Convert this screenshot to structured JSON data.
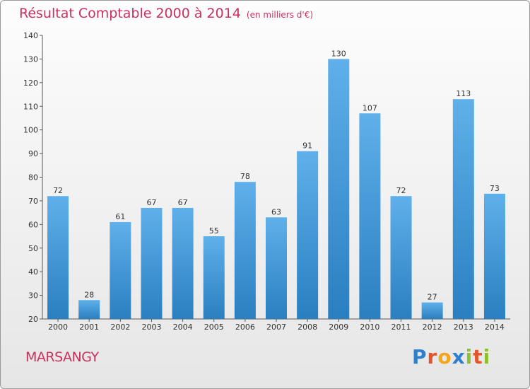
{
  "title": "Résultat Comptable 2000 à 2014",
  "subtitle": "(en milliers d'€)",
  "commune": "MARSANGY",
  "logo": {
    "letters": [
      {
        "ch": "P",
        "color": "#2f7fd0"
      },
      {
        "ch": "r",
        "color": "#e8542a"
      },
      {
        "ch": "o",
        "color": "#f3a81b"
      },
      {
        "ch": "x",
        "color": "#2f7fd0"
      },
      {
        "ch": "i",
        "color": "#8fbf2e"
      },
      {
        "ch": "t",
        "color": "#e8542a"
      },
      {
        "ch": "i",
        "color": "#8fbf2e"
      }
    ]
  },
  "chart_data": {
    "type": "bar",
    "title": "Résultat Comptable 2000 à 2014",
    "subtitle": "(en milliers d'€)",
    "xlabel": "",
    "ylabel": "",
    "categories": [
      "2000",
      "2001",
      "2002",
      "2003",
      "2004",
      "2005",
      "2006",
      "2007",
      "2008",
      "2009",
      "2010",
      "2011",
      "2012",
      "2013",
      "2014"
    ],
    "values": [
      72,
      28,
      61,
      67,
      67,
      55,
      78,
      63,
      91,
      130,
      107,
      72,
      27,
      113,
      73
    ],
    "ylim": [
      20,
      140
    ],
    "yticks": [
      20,
      30,
      40,
      50,
      60,
      70,
      80,
      90,
      100,
      110,
      120,
      130,
      140
    ],
    "grid": false,
    "bar_color_top": "#5fb0ea",
    "bar_color_bottom": "#2a7fc0"
  }
}
